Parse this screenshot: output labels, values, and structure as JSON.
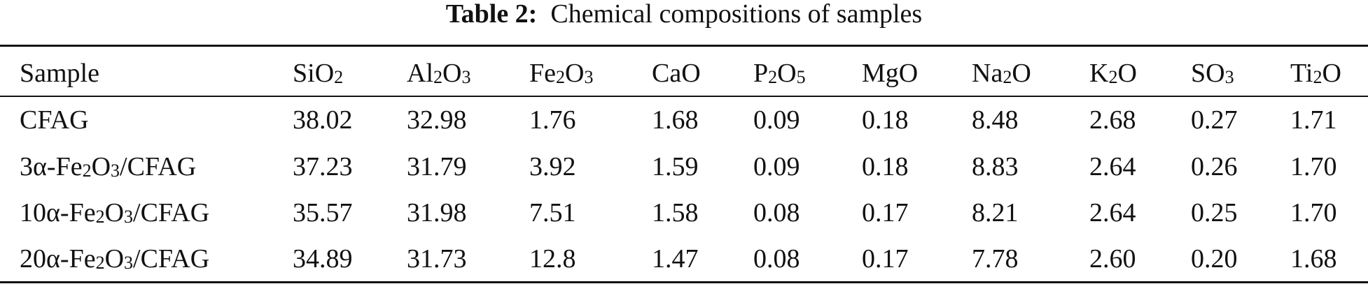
{
  "table": {
    "caption_label": "Table 2:",
    "caption_text": "Chemical compositions of samples",
    "headers": [
      {
        "main": "Sample"
      },
      {
        "main": "SiO",
        "sub": "2"
      },
      {
        "main": "Al",
        "sub": "2",
        "tail": "O",
        "sub2": "3"
      },
      {
        "main": "Fe",
        "sub": "2",
        "tail": "O",
        "sub2": "3"
      },
      {
        "main": "CaO"
      },
      {
        "main": "P",
        "sub": "2",
        "tail": "O",
        "sub2": "5"
      },
      {
        "main": "MgO"
      },
      {
        "main": "Na",
        "sub": "2",
        "tail": "O"
      },
      {
        "main": "K",
        "sub": "2",
        "tail": "O"
      },
      {
        "main": "SO",
        "sub": "3"
      },
      {
        "main": "Ti",
        "sub": "2",
        "tail": "O"
      }
    ],
    "rows": [
      {
        "sample": {
          "main": "CFAG"
        },
        "values": [
          "38.02",
          "32.98",
          "1.76",
          "1.68",
          "0.09",
          "0.18",
          "8.48",
          "2.68",
          "0.27",
          "1.71"
        ]
      },
      {
        "sample": {
          "main": "3α-Fe",
          "sub": "2",
          "tail": "O",
          "sub2": "3",
          "tail2": "/CFAG"
        },
        "values": [
          "37.23",
          "31.79",
          "3.92",
          "1.59",
          "0.09",
          "0.18",
          "8.83",
          "2.64",
          "0.26",
          "1.70"
        ]
      },
      {
        "sample": {
          "main": "10α-Fe",
          "sub": "2",
          "tail": "O",
          "sub2": "3",
          "tail2": "/CFAG"
        },
        "values": [
          "35.57",
          "31.98",
          "7.51",
          "1.58",
          "0.08",
          "0.17",
          "8.21",
          "2.64",
          "0.25",
          "1.70"
        ]
      },
      {
        "sample": {
          "main": "20α-Fe",
          "sub": "2",
          "tail": "O",
          "sub2": "3",
          "tail2": "/CFAG"
        },
        "values": [
          "34.89",
          "31.73",
          "12.8",
          "1.47",
          "0.08",
          "0.17",
          "7.78",
          "2.60",
          "0.20",
          "1.68"
        ]
      }
    ]
  }
}
